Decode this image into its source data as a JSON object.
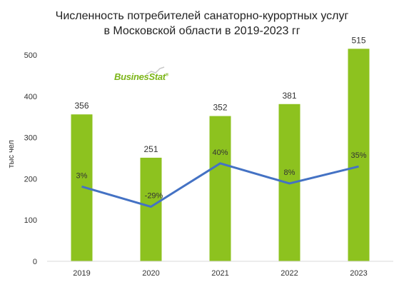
{
  "chart_data": {
    "type": "bar",
    "title_line1": "Численность  потребителей санаторно-курортных  услуг",
    "title_line2": "в Московской области в 2019-2023 гг",
    "ylabel": "тыс чел",
    "xlabel": "",
    "categories": [
      "2019",
      "2020",
      "2021",
      "2022",
      "2023"
    ],
    "values": [
      356,
      251,
      352,
      381,
      515
    ],
    "bar_labels": [
      "356",
      "251",
      "352",
      "381",
      "515"
    ],
    "ylim": [
      0,
      520
    ],
    "yticks": [
      0,
      100,
      200,
      300,
      400,
      500
    ],
    "ytick_labels": [
      "0",
      "100",
      "200",
      "300",
      "400",
      "500"
    ],
    "line_series": {
      "values": [
        3,
        -29,
        40,
        8,
        35
      ],
      "labels": [
        "3%",
        "-29%",
        "40%",
        "8%",
        "35%"
      ],
      "ylim": [
        -100,
        100
      ]
    },
    "grid": false,
    "colors": {
      "bar": "#8dc21f",
      "line": "#4472c4",
      "text": "#333333",
      "axis": "#d9d9d9"
    }
  },
  "logo": {
    "text": "BusinesStat",
    "mark": "®"
  }
}
